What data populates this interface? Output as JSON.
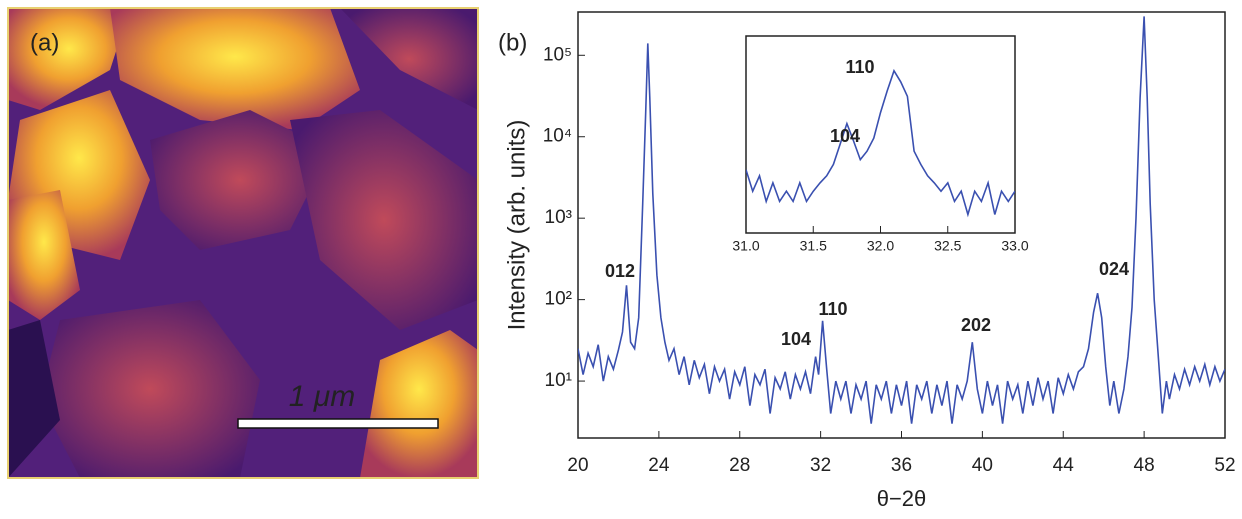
{
  "image_panel": {
    "label": "(a)",
    "scale_bar_label": "1 μm"
  },
  "chart_data": [
    {
      "type": "line",
      "panel_label": "(b)",
      "y_label": "Intensity (arb. units)",
      "x_label": "θ−2θ",
      "log_y": true,
      "color": "#3a50b0",
      "xlim": [
        20,
        52
      ],
      "xticks": [
        20,
        24,
        28,
        32,
        36,
        40,
        44,
        48,
        52
      ],
      "ylim": [
        2,
        340000
      ],
      "yticks": [
        {
          "value": 10,
          "label": "10¹"
        },
        {
          "value": 100,
          "label": "10²"
        },
        {
          "value": 1000,
          "label": "10³"
        },
        {
          "value": 10000,
          "label": "10⁴"
        },
        {
          "value": 100000,
          "label": "10⁵"
        }
      ],
      "annotations": [
        "012",
        "104",
        "110",
        "202",
        "024"
      ],
      "x": [
        20,
        20.25,
        20.5,
        20.75,
        21,
        21.25,
        21.5,
        21.75,
        22,
        22.2,
        22.4,
        22.6,
        22.8,
        23,
        23.2,
        23.35,
        23.45,
        23.55,
        23.7,
        23.9,
        24.1,
        24.3,
        24.5,
        24.75,
        25,
        25.25,
        25.5,
        25.75,
        26,
        26.25,
        26.5,
        26.75,
        27,
        27.25,
        27.5,
        27.75,
        28,
        28.25,
        28.5,
        28.75,
        29,
        29.25,
        29.5,
        29.75,
        30,
        30.25,
        30.5,
        30.75,
        31,
        31.25,
        31.5,
        31.75,
        31.9,
        32.1,
        32.3,
        32.5,
        32.75,
        33,
        33.25,
        33.5,
        33.75,
        34,
        34.25,
        34.5,
        34.75,
        35,
        35.25,
        35.5,
        35.75,
        36,
        36.25,
        36.5,
        36.75,
        37,
        37.25,
        37.5,
        37.75,
        38,
        38.25,
        38.5,
        38.75,
        39,
        39.25,
        39.5,
        39.75,
        40,
        40.25,
        40.5,
        40.75,
        41,
        41.25,
        41.5,
        41.75,
        42,
        42.25,
        42.5,
        42.75,
        43,
        43.25,
        43.5,
        43.75,
        44,
        44.25,
        44.5,
        44.75,
        45,
        45.25,
        45.5,
        45.7,
        45.9,
        46.1,
        46.3,
        46.5,
        46.75,
        47,
        47.2,
        47.4,
        47.6,
        47.8,
        48,
        48.15,
        48.3,
        48.5,
        48.7,
        48.9,
        49.1,
        49.25,
        49.5,
        49.75,
        50,
        50.25,
        50.5,
        50.75,
        51,
        51.25,
        51.5,
        51.75,
        52
      ],
      "values": [
        25,
        12,
        22,
        15,
        28,
        10,
        20,
        14,
        24,
        40,
        150,
        30,
        25,
        60,
        1500,
        20000,
        140000,
        30000,
        2000,
        200,
        60,
        30,
        18,
        25,
        12,
        20,
        9,
        18,
        11,
        16,
        7,
        15,
        10,
        14,
        6,
        13,
        9,
        15,
        5,
        12,
        9,
        14,
        4,
        11,
        8,
        13,
        6,
        12,
        8,
        13,
        7,
        20,
        12,
        55,
        14,
        4,
        10,
        6,
        10,
        4,
        9,
        6,
        10,
        3,
        9,
        6,
        10,
        4,
        9,
        5,
        10,
        3,
        9,
        6,
        10,
        4,
        9,
        5,
        10,
        3,
        9,
        6,
        10,
        30,
        8,
        4,
        10,
        5,
        9,
        3,
        10,
        6,
        9,
        4,
        10,
        5,
        11,
        6,
        10,
        4,
        11,
        7,
        12,
        8,
        13,
        15,
        25,
        70,
        120,
        60,
        15,
        5,
        10,
        4,
        8,
        20,
        80,
        1000,
        30000,
        300000,
        30000,
        1500,
        100,
        20,
        4,
        10,
        6,
        12,
        8,
        14,
        9,
        15,
        10,
        16,
        9,
        15,
        10,
        14
      ]
    },
    {
      "type": "line",
      "log_y": true,
      "color": "#3a50b0",
      "xlim": [
        31,
        33
      ],
      "xticks": [
        {
          "value": 31,
          "label": "31.0"
        },
        {
          "value": 31.5,
          "label": "31.5"
        },
        {
          "value": 32,
          "label": "32.0"
        },
        {
          "value": 32.5,
          "label": "32.5"
        },
        {
          "value": 33,
          "label": "33.0"
        }
      ],
      "ylim": [
        2,
        150
      ],
      "annotations": [
        "110",
        "104"
      ],
      "x": [
        31,
        31.05,
        31.1,
        31.15,
        31.2,
        31.25,
        31.3,
        31.35,
        31.4,
        31.45,
        31.5,
        31.55,
        31.6,
        31.65,
        31.7,
        31.75,
        31.8,
        31.85,
        31.9,
        31.95,
        32,
        32.05,
        32.1,
        32.15,
        32.2,
        32.25,
        32.3,
        32.35,
        32.4,
        32.45,
        32.5,
        32.55,
        32.6,
        32.65,
        32.7,
        32.75,
        32.8,
        32.85,
        32.9,
        32.95,
        33
      ],
      "values": [
        8,
        5,
        7,
        4,
        6,
        4,
        5,
        4,
        6,
        4,
        5,
        6,
        7,
        9,
        14,
        22,
        15,
        10,
        12,
        16,
        28,
        45,
        70,
        55,
        40,
        12,
        9,
        7,
        6,
        5,
        6,
        4,
        5,
        3,
        5,
        4,
        6,
        3,
        5,
        4,
        5
      ]
    }
  ]
}
